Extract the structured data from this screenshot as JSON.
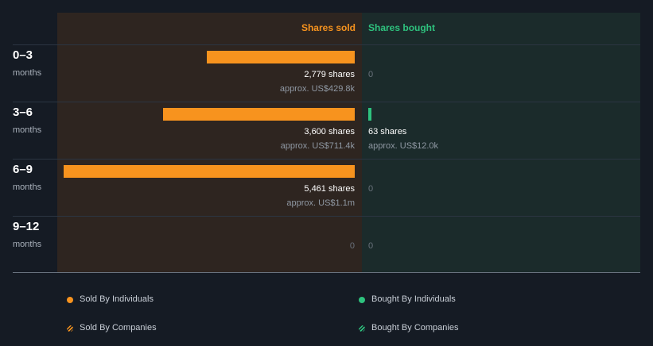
{
  "chart_data": {
    "type": "bar",
    "columns": {
      "sold": "Shares sold",
      "bought": "Shares bought"
    },
    "categories": [
      {
        "period": "0–3",
        "unit": "months"
      },
      {
        "period": "3–6",
        "unit": "months"
      },
      {
        "period": "6–9",
        "unit": "months"
      },
      {
        "period": "9–12",
        "unit": "months"
      }
    ],
    "series": [
      {
        "name": "Shares sold",
        "values": [
          2779,
          3600,
          5461,
          0
        ],
        "labels": [
          "2,779 shares",
          "3,600 shares",
          "5,461 shares",
          "0"
        ],
        "approx": [
          "approx. US$429.8k",
          "approx. US$711.4k",
          "approx. US$1.1m",
          ""
        ]
      },
      {
        "name": "Shares bought",
        "values": [
          0,
          63,
          0,
          0
        ],
        "labels": [
          "0",
          "63 shares",
          "0",
          "0"
        ],
        "approx": [
          "",
          "approx. US$12.0k",
          "",
          ""
        ]
      }
    ],
    "legend": [
      {
        "label": "Sold By Individuals",
        "color": "#f7931e",
        "style": "solid"
      },
      {
        "label": "Bought By Individuals",
        "color": "#2ec27e",
        "style": "solid"
      },
      {
        "label": "Sold By Companies",
        "color": "#f7931e",
        "style": "hatched"
      },
      {
        "label": "Bought By Companies",
        "color": "#2ec27e",
        "style": "hatched"
      }
    ],
    "xlim": [
      0,
      5461
    ]
  }
}
